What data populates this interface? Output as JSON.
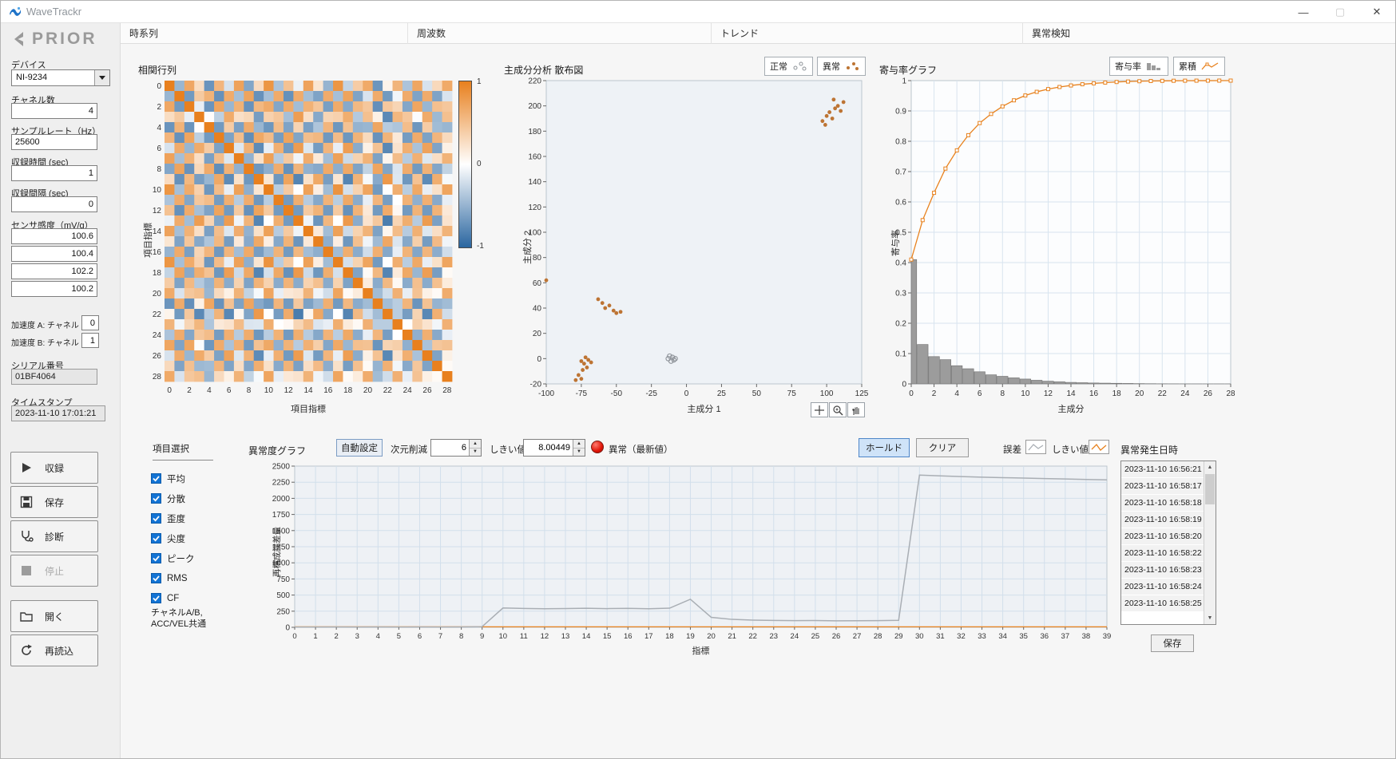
{
  "window": {
    "title": "WaveTrackr"
  },
  "titlebar": {
    "minimize_label": "—",
    "maximize_label": "▢",
    "close_label": "✕"
  },
  "tabs": [
    {
      "label": "時系列",
      "active": false
    },
    {
      "label": "周波数",
      "active": false
    },
    {
      "label": "トレンド",
      "active": false
    },
    {
      "label": "異常検知",
      "active": true
    }
  ],
  "sidebar": {
    "logo_text": "PRIOR",
    "device_label": "デバイス",
    "device_value": "NI-9234",
    "channels_label": "チャネル数",
    "channels_value": "4",
    "samplerate_label": "サンプルレート（Hz）",
    "samplerate_value": "25600",
    "rec_time_label": "収録時間 (sec)",
    "rec_time_value": "1",
    "rec_interval_label": "収録間隔 (sec)",
    "rec_interval_value": "0",
    "sensitivity_label": "センサ感度（mV/g）",
    "sensor_values": [
      "100.6",
      "100.4",
      "102.2",
      "100.2"
    ],
    "accel_a_label": "加速度 A: チャネル",
    "accel_a_value": "0",
    "accel_b_label": "加速度 B: チャネル",
    "accel_b_value": "1",
    "serial_label": "シリアル番号",
    "serial_value": "01BF4064",
    "timestamp_label": "タイムスタンプ",
    "timestamp_value": "2023-11-10 17:01:21",
    "record_button": "収録",
    "save_button": "保存",
    "diagnose_button": "診断",
    "stop_button": "停止",
    "open_button": "開く",
    "reload_button": "再読込"
  },
  "scatter_legend": {
    "normal": "正常",
    "anomaly": "異常"
  },
  "contribution_legend": {
    "rate": "寄与率",
    "cumulative": "累積"
  },
  "controls": {
    "item_select_label": "項目選択",
    "items": [
      "平均",
      "分散",
      "歪度",
      "尖度",
      "ピーク",
      "RMS",
      "CF"
    ],
    "items_checked": [
      true,
      true,
      true,
      true,
      true,
      true,
      true
    ],
    "note_line1": "チャネルA/B,",
    "note_line2": "ACC/VEL共通",
    "graph_title": "異常度グラフ",
    "auto_button": "自動設定",
    "dim_label": "次元削減",
    "dim_value": "6",
    "threshold_label": "しきい値",
    "threshold_value": "8.00449",
    "led_label": "異常（最新値）",
    "hold_button": "ホールド",
    "clear_button": "クリア",
    "legend_error": "誤差",
    "legend_threshold": "しきい値",
    "events_label": "異常発生日時",
    "event_times": [
      "2023-11-10 16:56:21",
      "2023-11-10 16:58:17",
      "2023-11-10 16:58:18",
      "2023-11-10 16:58:19",
      "2023-11-10 16:58:20",
      "2023-11-10 16:58:22",
      "2023-11-10 16:58:23",
      "2023-11-10 16:58:24",
      "2023-11-10 16:58:25"
    ],
    "events_save_button": "保存"
  },
  "chart_data": [
    {
      "name": "correlation_matrix",
      "type": "heatmap",
      "title": "相関行列",
      "xlabel": "項目指標",
      "ylabel": "項目指標",
      "n": 29,
      "x_ticks": [
        0,
        2,
        4,
        6,
        8,
        10,
        12,
        14,
        16,
        18,
        20,
        22,
        24,
        26,
        28
      ],
      "y_ticks": [
        0,
        2,
        4,
        6,
        8,
        10,
        12,
        14,
        16,
        18,
        20,
        22,
        24,
        26,
        28
      ],
      "value_range": [
        -1,
        1
      ],
      "colorbar": {
        "max_label": "1",
        "mid_label": "0",
        "min_label": "-1"
      },
      "positive_color": "#e8801e",
      "negative_color": "#2a66a0",
      "matrix_note": "cell(i,j) estimated as clamp(a[i]*a[j]+b[i]*b[j],-1,1), diagonal=1",
      "matrix_basis_a": [
        0.9,
        -0.6,
        0.8,
        0.2,
        -0.8,
        0.7,
        -0.3,
        0.8,
        -0.7,
        0.4,
        0.9,
        -0.5,
        0.6,
        -0.2,
        0.8,
        0.3,
        -0.6,
        0.9,
        -0.4,
        0.5,
        0.7,
        -0.8,
        0.2,
        0.6,
        -0.5,
        0.8,
        -0.3,
        0.4,
        0.7
      ],
      "matrix_basis_b": [
        0.1,
        0.6,
        -0.3,
        0.9,
        0.2,
        -0.5,
        0.8,
        0.1,
        0.5,
        -0.8,
        0.2,
        0.6,
        -0.6,
        0.9,
        0.1,
        -0.7,
        0.5,
        0.2,
        0.8,
        -0.5,
        0.4,
        0.3,
        -0.9,
        0.5,
        0.6,
        -0.2,
        0.8,
        -0.6,
        0.4
      ]
    },
    {
      "name": "pca_scatter",
      "type": "scatter",
      "title": "主成分分析 散布図",
      "xlabel": "主成分 1",
      "ylabel": "主成分 2",
      "xlim": [
        -100,
        125
      ],
      "ylim": [
        -20,
        220
      ],
      "x_ticks": [
        -100,
        -75,
        -50,
        -25,
        0,
        25,
        50,
        75,
        100,
        125
      ],
      "y_ticks": [
        -20,
        0,
        20,
        40,
        60,
        80,
        100,
        120,
        140,
        160,
        180,
        200,
        220
      ],
      "plot_bg": "#eef2f6",
      "series": [
        {
          "name": "正常",
          "marker": "open-circle",
          "color": "#8e9399",
          "points": [
            [
              -13,
              0
            ],
            [
              -11,
              -2
            ],
            [
              -10,
              1
            ],
            [
              -9,
              -1
            ],
            [
              -12,
              2
            ],
            [
              -8,
              0
            ]
          ]
        },
        {
          "name": "異常",
          "marker": "dot",
          "color": "#bd7433",
          "points": [
            [
              -100,
              62
            ],
            [
              -79,
              -17
            ],
            [
              -77,
              -13
            ],
            [
              -75,
              -16
            ],
            [
              -74,
              -9
            ],
            [
              -73,
              -4
            ],
            [
              -71,
              -7
            ],
            [
              -70,
              -1
            ],
            [
              -75,
              -2
            ],
            [
              -72,
              1
            ],
            [
              -68,
              -3
            ],
            [
              -63,
              47
            ],
            [
              -60,
              44
            ],
            [
              -58,
              40
            ],
            [
              -55,
              42
            ],
            [
              -52,
              38
            ],
            [
              -50,
              36
            ],
            [
              -47,
              37
            ],
            [
              97,
              188
            ],
            [
              99,
              185
            ],
            [
              100,
              192
            ],
            [
              102,
              195
            ],
            [
              104,
              190
            ],
            [
              105,
              205
            ],
            [
              106,
              198
            ],
            [
              108,
              200
            ],
            [
              110,
              196
            ],
            [
              112,
              203
            ]
          ]
        }
      ]
    },
    {
      "name": "contribution_rate",
      "type": "bar",
      "title": "寄与率グラフ",
      "xlabel": "主成分",
      "ylabel": "寄与率",
      "xlim": [
        0,
        28
      ],
      "ylim": [
        0,
        1
      ],
      "x_ticks": [
        0,
        2,
        4,
        6,
        8,
        10,
        12,
        14,
        16,
        18,
        20,
        22,
        24,
        26,
        28
      ],
      "y_ticks": [
        0,
        0.1,
        0.2,
        0.3,
        0.4,
        0.5,
        0.6,
        0.7,
        0.8,
        0.9,
        1
      ],
      "categories": [
        0,
        1,
        2,
        3,
        4,
        5,
        6,
        7,
        8,
        9,
        10,
        11,
        12,
        13,
        14,
        15,
        16,
        17,
        18,
        19,
        20,
        21,
        22,
        23,
        24,
        25,
        26,
        27,
        28
      ],
      "bar_color": "#9c9c9c",
      "line_color": "#e8821e",
      "grid": true,
      "series": [
        {
          "name": "寄与率",
          "type": "bar",
          "values": [
            0.41,
            0.13,
            0.09,
            0.08,
            0.06,
            0.05,
            0.04,
            0.03,
            0.025,
            0.02,
            0.016,
            0.012,
            0.009,
            0.007,
            0.005,
            0.004,
            0.003,
            0.0025,
            0.002,
            0.0015,
            0.001,
            0.0007,
            0.0005,
            0.0003,
            0.0002,
            0.00015,
            0.0001,
            0.0001,
            0.0001
          ],
          "note": "estimated from bar heights"
        },
        {
          "name": "累積",
          "type": "line",
          "marker": "open-square",
          "values": [
            0.41,
            0.54,
            0.63,
            0.71,
            0.77,
            0.82,
            0.86,
            0.89,
            0.915,
            0.935,
            0.951,
            0.963,
            0.972,
            0.979,
            0.984,
            0.988,
            0.991,
            0.9935,
            0.9955,
            0.997,
            0.998,
            0.9987,
            0.9992,
            0.9995,
            0.9997,
            0.9998,
            0.9999,
            0.99995,
            1.0
          ]
        }
      ]
    },
    {
      "name": "anomaly_graph",
      "type": "line",
      "title": "異常度グラフ",
      "xlabel": "指標",
      "ylabel": "再構成誤差量",
      "xlim": [
        0,
        39
      ],
      "ylim": [
        0,
        2500
      ],
      "x_ticks": [
        0,
        1,
        2,
        3,
        4,
        5,
        6,
        7,
        8,
        9,
        10,
        11,
        12,
        13,
        14,
        15,
        16,
        17,
        18,
        19,
        20,
        21,
        22,
        23,
        24,
        25,
        26,
        27,
        28,
        29,
        30,
        31,
        32,
        33,
        34,
        35,
        36,
        37,
        38,
        39
      ],
      "y_ticks": [
        0,
        250,
        500,
        750,
        1000,
        1250,
        1500,
        1750,
        2000,
        2250,
        2500
      ],
      "plot_bg": "#eef1f5",
      "grid": true,
      "series": [
        {
          "name": "誤差",
          "color": "#a9aeb4",
          "values": [
            3,
            3,
            4,
            3,
            4,
            3,
            4,
            3,
            4,
            10,
            300,
            293,
            288,
            291,
            296,
            290,
            294,
            287,
            297,
            435,
            155,
            123,
            112,
            107,
            103,
            105,
            100,
            102,
            104,
            108,
            2360,
            2348,
            2337,
            2328,
            2321,
            2314,
            2307,
            2300,
            2293,
            2287
          ],
          "note": "estimated from plot"
        },
        {
          "name": "しきい値",
          "color": "#e8821e",
          "constant": 8.00449
        }
      ]
    }
  ]
}
